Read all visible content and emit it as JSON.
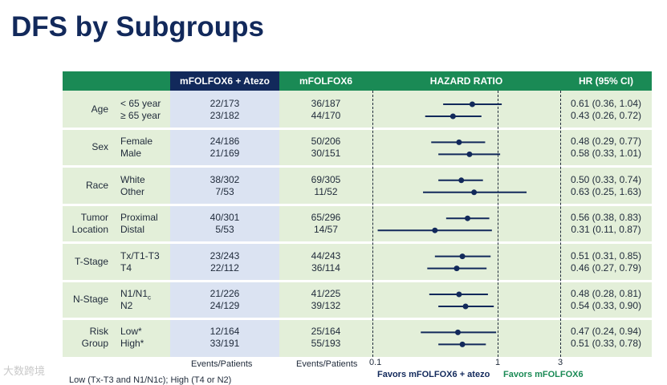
{
  "title": "DFS by Subgroups",
  "headers": {
    "atezo": "mFOLFOX6 + Atezo",
    "control": "mFOLFOX6",
    "hr_plot": "HAZARD RATIO",
    "hr_ci": "HR (95% CI)"
  },
  "footers": {
    "atezo": "Events/Patients",
    "control": "Events/Patients",
    "note": "Low (Tx-T3 and N1/N1c); High (T4 or N2)",
    "favors_left": "Favors mFOLFOX6 + atezo",
    "favors_right": "Favors mFOLFOX6"
  },
  "watermark": "大数跨境",
  "colors": {
    "header_green": "#1a8a55",
    "header_navy": "#12295b",
    "panel_green": "#e3efd9",
    "panel_blue": "#dbe3f2",
    "marker": "#12295b",
    "favors_right": "#1a8a55"
  },
  "groups": [
    {
      "name": "Age",
      "rows": [
        {
          "sub": "< 65 year",
          "atezo": "22/173",
          "control": "36/187",
          "ci": "0.61 (0.36, 1.04)"
        },
        {
          "sub": "≥ 65 year",
          "atezo": "23/182",
          "control": "44/170",
          "ci": "0.43 (0.26, 0.72)"
        }
      ]
    },
    {
      "name": "Sex",
      "rows": [
        {
          "sub": "Female",
          "atezo": "24/186",
          "control": "50/206",
          "ci": "0.48 (0.29, 0.77)"
        },
        {
          "sub": "Male",
          "atezo": "21/169",
          "control": "30/151",
          "ci": "0.58 (0.33, 1.01)"
        }
      ]
    },
    {
      "name": "Race",
      "rows": [
        {
          "sub": "White",
          "atezo": "38/302",
          "control": "69/305",
          "ci": "0.50 (0.33, 0.74)"
        },
        {
          "sub": "Other",
          "atezo": "7/53",
          "control": "11/52",
          "ci": "0.63 (0.25, 1.63)"
        }
      ]
    },
    {
      "name": "Tumor Location",
      "name_lines": [
        "Tumor",
        "Location"
      ],
      "rows": [
        {
          "sub": "Proximal",
          "atezo": "40/301",
          "control": "65/296",
          "ci": "0.56 (0.38, 0.83)"
        },
        {
          "sub": "Distal",
          "atezo": "5/53",
          "control": "14/57",
          "ci": "0.31 (0.11, 0.87)"
        }
      ]
    },
    {
      "name": "T-Stage",
      "rows": [
        {
          "sub": "Tx/T1-T3",
          "atezo": "23/243",
          "control": "44/243",
          "ci": "0.51 (0.31, 0.85)"
        },
        {
          "sub": "T4",
          "atezo": "22/112",
          "control": "36/114",
          "ci": "0.46 (0.27, 0.79)"
        }
      ]
    },
    {
      "name": "N-Stage",
      "rows": [
        {
          "sub": "N1/N1c",
          "sub_main": "N1/N1",
          "sub_subscript": "c",
          "atezo": "21/226",
          "control": "41/225",
          "ci": "0.48 (0.28, 0.81)"
        },
        {
          "sub": "N2",
          "atezo": "24/129",
          "control": "39/132",
          "ci": "0.54 (0.33, 0.90)"
        }
      ]
    },
    {
      "name": "Risk Group",
      "name_lines": [
        "Risk",
        "Group"
      ],
      "rows": [
        {
          "sub": "Low*",
          "atezo": "12/164",
          "control": "25/164",
          "ci": "0.47 (0.24, 0.94)"
        },
        {
          "sub": "High*",
          "atezo": "33/191",
          "control": "55/193",
          "ci": "0.51 (0.33, 0.78)"
        }
      ]
    }
  ],
  "chart_data": {
    "type": "forest",
    "x_scale": "log",
    "xlim": [
      0.1,
      3
    ],
    "x_ticks": [
      "0.1",
      "1",
      "3"
    ],
    "reference_line": 1,
    "series": [
      {
        "label": "Age < 65 year",
        "hr": 0.61,
        "lo": 0.36,
        "hi": 1.04
      },
      {
        "label": "Age ≥ 65 year",
        "hr": 0.43,
        "lo": 0.26,
        "hi": 0.72
      },
      {
        "label": "Sex Female",
        "hr": 0.48,
        "lo": 0.29,
        "hi": 0.77
      },
      {
        "label": "Sex Male",
        "hr": 0.58,
        "lo": 0.33,
        "hi": 1.01
      },
      {
        "label": "Race White",
        "hr": 0.5,
        "lo": 0.33,
        "hi": 0.74
      },
      {
        "label": "Race Other",
        "hr": 0.63,
        "lo": 0.25,
        "hi": 1.63
      },
      {
        "label": "Tumor Location Proximal",
        "hr": 0.56,
        "lo": 0.38,
        "hi": 0.83
      },
      {
        "label": "Tumor Location Distal",
        "hr": 0.31,
        "lo": 0.11,
        "hi": 0.87
      },
      {
        "label": "T-Stage Tx/T1-T3",
        "hr": 0.51,
        "lo": 0.31,
        "hi": 0.85
      },
      {
        "label": "T-Stage T4",
        "hr": 0.46,
        "lo": 0.27,
        "hi": 0.79
      },
      {
        "label": "N-Stage N1/N1c",
        "hr": 0.48,
        "lo": 0.28,
        "hi": 0.81
      },
      {
        "label": "N-Stage N2",
        "hr": 0.54,
        "lo": 0.33,
        "hi": 0.9
      },
      {
        "label": "Risk Group Low*",
        "hr": 0.47,
        "lo": 0.24,
        "hi": 0.94
      },
      {
        "label": "Risk Group High*",
        "hr": 0.51,
        "lo": 0.33,
        "hi": 0.78
      }
    ]
  }
}
